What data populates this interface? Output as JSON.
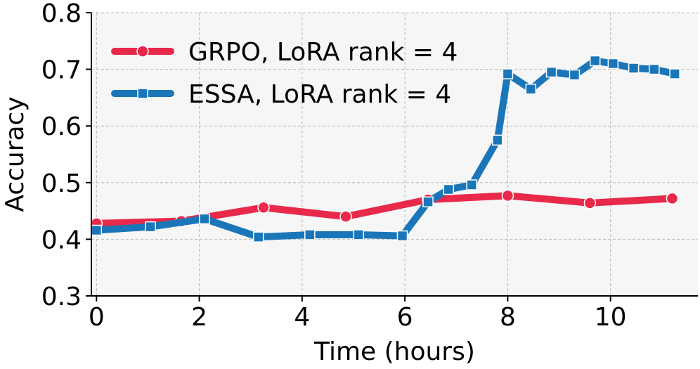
{
  "chart_data": {
    "type": "line",
    "title": "",
    "xlabel": "Time (hours)",
    "ylabel": "Accuracy",
    "xlim": [
      -0.1,
      11.7
    ],
    "ylim": [
      0.3,
      0.8
    ],
    "xticks": [
      0,
      2,
      4,
      6,
      8,
      10
    ],
    "xtick_labels": [
      "0",
      "2",
      "4",
      "6",
      "8",
      "10"
    ],
    "yticks": [
      0.3,
      0.4,
      0.5,
      0.6,
      0.7,
      0.8
    ],
    "ytick_labels": [
      "0.3",
      "0.4",
      "0.5",
      "0.6",
      "0.7",
      "0.8"
    ],
    "grid": true,
    "legend_position": "top-left",
    "series": [
      {
        "name": "GRPO, LoRA rank = 4",
        "color": "#e8294a",
        "marker": "circle",
        "x": [
          0,
          1.65,
          3.25,
          4.85,
          6.45,
          8.0,
          9.6,
          11.2
        ],
        "y": [
          0.428,
          0.432,
          0.456,
          0.44,
          0.47,
          0.477,
          0.464,
          0.472
        ]
      },
      {
        "name": "ESSA, LoRA rank = 4",
        "color": "#1a76b8",
        "marker": "square",
        "x": [
          0,
          1.05,
          2.1,
          3.15,
          4.15,
          5.1,
          5.95,
          6.45,
          6.85,
          7.3,
          7.8,
          8.0,
          8.45,
          8.85,
          9.3,
          9.7,
          10.05,
          10.45,
          10.85,
          11.25
        ],
        "y": [
          0.416,
          0.422,
          0.436,
          0.404,
          0.408,
          0.408,
          0.406,
          0.466,
          0.488,
          0.496,
          0.575,
          0.692,
          0.665,
          0.695,
          0.69,
          0.715,
          0.71,
          0.702,
          0.7,
          0.692
        ]
      }
    ]
  }
}
